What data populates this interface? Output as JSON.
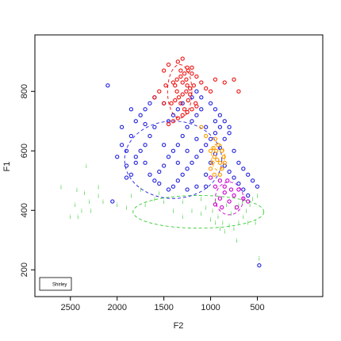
{
  "chart_data": {
    "type": "scatter",
    "title": "",
    "xlabel": "F2",
    "ylabel": "F1",
    "xlim": [
      2880,
      -200
    ],
    "ylim": [
      990,
      110
    ],
    "x_ticks": [
      2500,
      2000,
      1500,
      1000,
      500
    ],
    "y_ticks": [
      200,
      400,
      600,
      800
    ],
    "grid": false,
    "legend": {
      "position": "bottom-left",
      "entries": [
        "Shirley"
      ]
    },
    "series": [
      {
        "vowel": "i",
        "color": "#33cc33",
        "marker": "i",
        "centroid": [
          1130,
          395
        ],
        "ellipse": {
          "rx_data": 700,
          "ry_data": 55,
          "dash": "dashed"
        },
        "points": [
          [
            2430,
            470
          ],
          [
            2350,
            460
          ],
          [
            2200,
            450
          ],
          [
            2150,
            430
          ],
          [
            2000,
            420
          ],
          [
            1900,
            410
          ],
          [
            1850,
            450
          ],
          [
            1700,
            420
          ],
          [
            1600,
            440
          ],
          [
            1500,
            430
          ],
          [
            1400,
            400
          ],
          [
            1300,
            380
          ],
          [
            1200,
            400
          ],
          [
            1100,
            390
          ],
          [
            1000,
            370
          ],
          [
            950,
            360
          ],
          [
            900,
            340
          ],
          [
            850,
            330
          ],
          [
            800,
            350
          ],
          [
            750,
            340
          ],
          [
            700,
            360
          ],
          [
            650,
            380
          ],
          [
            620,
            400
          ],
          [
            580,
            420
          ],
          [
            550,
            440
          ],
          [
            500,
            450
          ],
          [
            480,
            240
          ],
          [
            600,
            360
          ],
          [
            2500,
            380
          ],
          [
            2450,
            420
          ],
          [
            2300,
            430
          ],
          [
            1050,
            410
          ],
          [
            980,
            400
          ],
          [
            920,
            380
          ],
          [
            870,
            360
          ],
          [
            830,
            420
          ],
          [
            780,
            390
          ],
          [
            740,
            410
          ],
          [
            700,
            420
          ],
          [
            660,
            430
          ],
          [
            2420,
            380
          ],
          [
            2380,
            400
          ],
          [
            2280,
            400
          ],
          [
            2200,
            480
          ],
          [
            1750,
            470
          ],
          [
            1550,
            460
          ],
          [
            1300,
            430
          ],
          [
            1100,
            440
          ],
          [
            950,
            430
          ],
          [
            2330,
            550
          ],
          [
            2600,
            480
          ],
          [
            720,
            300
          ],
          [
            520,
            360
          ]
        ]
      },
      {
        "vowel": "e",
        "color": "#2222dd",
        "marker": "e",
        "centroid": [
          1400,
          570
        ],
        "ellipse": {
          "rx_data": 520,
          "ry_data": 130,
          "dash": "dashed"
        },
        "points": [
          [
            2050,
            430
          ],
          [
            1900,
            510
          ],
          [
            1850,
            520
          ],
          [
            1800,
            580
          ],
          [
            1750,
            600
          ],
          [
            1700,
            620
          ],
          [
            1650,
            650
          ],
          [
            1600,
            500
          ],
          [
            1550,
            530
          ],
          [
            1500,
            550
          ],
          [
            1450,
            580
          ],
          [
            1400,
            600
          ],
          [
            1350,
            620
          ],
          [
            1300,
            650
          ],
          [
            1250,
            680
          ],
          [
            1200,
            700
          ],
          [
            1150,
            720
          ],
          [
            1100,
            740
          ],
          [
            1050,
            520
          ],
          [
            1000,
            560
          ],
          [
            950,
            590
          ],
          [
            900,
            610
          ],
          [
            850,
            640
          ],
          [
            800,
            660
          ],
          [
            750,
            600
          ],
          [
            700,
            560
          ],
          [
            650,
            540
          ],
          [
            600,
            520
          ],
          [
            550,
            500
          ],
          [
            500,
            480
          ],
          [
            1800,
            700
          ],
          [
            1750,
            720
          ],
          [
            1700,
            740
          ],
          [
            1650,
            760
          ],
          [
            1600,
            780
          ],
          [
            1500,
            760
          ],
          [
            1450,
            700
          ],
          [
            1400,
            720
          ],
          [
            1350,
            740
          ],
          [
            1300,
            760
          ],
          [
            1200,
            780
          ],
          [
            1150,
            800
          ],
          [
            1100,
            780
          ],
          [
            1000,
            760
          ],
          [
            950,
            740
          ],
          [
            900,
            720
          ],
          [
            850,
            700
          ],
          [
            800,
            680
          ],
          [
            2100,
            820
          ],
          [
            480,
            215
          ],
          [
            1900,
            600
          ],
          [
            1850,
            650
          ],
          [
            1950,
            620
          ],
          [
            1700,
            560
          ],
          [
            1650,
            520
          ],
          [
            1550,
            490
          ],
          [
            1450,
            470
          ],
          [
            1400,
            480
          ],
          [
            1350,
            500
          ],
          [
            1300,
            520
          ],
          [
            1250,
            540
          ],
          [
            1200,
            560
          ],
          [
            1150,
            580
          ],
          [
            1100,
            600
          ],
          [
            1050,
            620
          ],
          [
            1000,
            640
          ],
          [
            950,
            660
          ],
          [
            900,
            680
          ],
          [
            850,
            550
          ],
          [
            800,
            530
          ],
          [
            750,
            510
          ],
          [
            700,
            490
          ],
          [
            650,
            470
          ],
          [
            600,
            450
          ],
          [
            1350,
            560
          ],
          [
            1250,
            600
          ],
          [
            1150,
            640
          ],
          [
            1050,
            680
          ],
          [
            950,
            700
          ],
          [
            1500,
            620
          ],
          [
            1600,
            680
          ],
          [
            1700,
            690
          ],
          [
            1800,
            560
          ],
          [
            1900,
            550
          ],
          [
            2000,
            580
          ],
          [
            1950,
            680
          ],
          [
            1850,
            740
          ],
          [
            1250,
            470
          ],
          [
            1150,
            480
          ],
          [
            1050,
            480
          ]
        ]
      },
      {
        "vowel": "a",
        "color": "#ee1111",
        "marker": "a",
        "centroid": [
          1330,
          800
        ],
        "ellipse": {
          "rx_data": 130,
          "ry_data": 90,
          "dash": "dashed"
        },
        "points": [
          [
            1450,
            690
          ],
          [
            1400,
            700
          ],
          [
            1350,
            710
          ],
          [
            1300,
            720
          ],
          [
            1250,
            730
          ],
          [
            1200,
            740
          ],
          [
            1150,
            750
          ],
          [
            1420,
            760
          ],
          [
            1380,
            770
          ],
          [
            1340,
            780
          ],
          [
            1300,
            790
          ],
          [
            1260,
            800
          ],
          [
            1220,
            810
          ],
          [
            1180,
            820
          ],
          [
            1400,
            830
          ],
          [
            1360,
            840
          ],
          [
            1320,
            850
          ],
          [
            1280,
            860
          ],
          [
            1240,
            870
          ],
          [
            1200,
            880
          ],
          [
            1160,
            760
          ],
          [
            1500,
            870
          ],
          [
            1450,
            890
          ],
          [
            1350,
            900
          ],
          [
            1300,
            910
          ],
          [
            1250,
            880
          ],
          [
            1150,
            850
          ],
          [
            1100,
            830
          ],
          [
            1050,
            810
          ],
          [
            1000,
            800
          ],
          [
            950,
            840
          ],
          [
            850,
            830
          ],
          [
            750,
            840
          ],
          [
            700,
            800
          ],
          [
            1550,
            800
          ],
          [
            1600,
            780
          ],
          [
            1500,
            760
          ],
          [
            1480,
            820
          ],
          [
            1320,
            760
          ],
          [
            1280,
            740
          ],
          [
            1240,
            770
          ],
          [
            1360,
            800
          ],
          [
            1300,
            830
          ],
          [
            1260,
            840
          ],
          [
            1220,
            790
          ],
          [
            1320,
            870
          ],
          [
            1200,
            860
          ],
          [
            1380,
            820
          ],
          [
            1250,
            820
          ]
        ]
      },
      {
        "vowel": "o",
        "color": "#ff9900",
        "marker": "o",
        "centroid": [
          920,
          580
        ],
        "ellipse": {
          "rx_data": 70,
          "ry_data": 45,
          "dash": "dashed"
        },
        "points": [
          [
            1000,
            540
          ],
          [
            980,
            560
          ],
          [
            960,
            580
          ],
          [
            940,
            600
          ],
          [
            920,
            620
          ],
          [
            900,
            560
          ],
          [
            880,
            540
          ],
          [
            860,
            580
          ],
          [
            1000,
            600
          ],
          [
            950,
            640
          ],
          [
            880,
            600
          ],
          [
            900,
            520
          ],
          [
            960,
            520
          ],
          [
            1050,
            650
          ],
          [
            1100,
            680
          ],
          [
            850,
            560
          ],
          [
            930,
            570
          ],
          [
            970,
            610
          ]
        ]
      },
      {
        "vowel": "u",
        "color": "#cc00cc",
        "marker": "u",
        "centroid": [
          800,
          440
        ],
        "ellipse": {
          "rx_data": 150,
          "ry_data": 55,
          "dash": "dashed"
        },
        "points": [
          [
            950,
            420
          ],
          [
            900,
            440
          ],
          [
            850,
            460
          ],
          [
            800,
            430
          ],
          [
            750,
            450
          ],
          [
            700,
            470
          ],
          [
            650,
            440
          ],
          [
            600,
            430
          ],
          [
            950,
            480
          ],
          [
            900,
            500
          ],
          [
            850,
            480
          ],
          [
            1000,
            510
          ],
          [
            780,
            470
          ],
          [
            720,
            410
          ],
          [
            880,
            410
          ],
          [
            820,
            500
          ]
        ]
      }
    ]
  }
}
